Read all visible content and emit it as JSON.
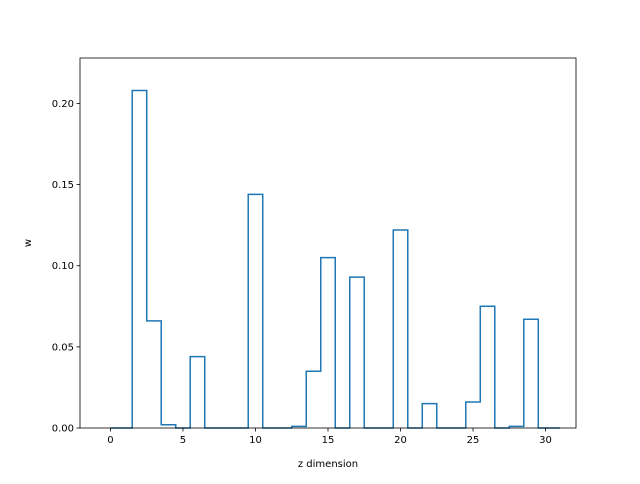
{
  "colors": {
    "series": "#1f77b4",
    "axes": "#000000",
    "background": "#ffffff"
  },
  "chart_data": {
    "type": "step",
    "title": "",
    "xlabel": "z dimension",
    "ylabel": "w",
    "xlim": [
      -2.1,
      32.1
    ],
    "ylim": [
      0,
      0.228
    ],
    "grid": false,
    "x_ticks": [
      0,
      5,
      10,
      15,
      20,
      25,
      30
    ],
    "x_tick_labels": [
      "0",
      "5",
      "10",
      "15",
      "20",
      "25",
      "30"
    ],
    "y_ticks": [
      0.0,
      0.05,
      0.1,
      0.15,
      0.2
    ],
    "y_tick_labels": [
      "0.00",
      "0.05",
      "0.10",
      "0.15",
      "0.20"
    ],
    "series": [
      {
        "x": [
          0,
          1,
          2,
          3,
          4,
          5,
          6,
          7,
          8,
          9,
          10,
          11,
          12,
          13,
          14,
          15,
          16,
          17,
          18,
          19,
          20,
          21,
          22,
          23,
          24,
          25,
          26,
          27,
          28,
          29,
          30,
          31
        ],
        "values": [
          0.0,
          0.0,
          0.208,
          0.066,
          0.002,
          0.0,
          0.044,
          0.0,
          0.0,
          0.0,
          0.144,
          0.0,
          0.0,
          0.001,
          0.035,
          0.105,
          0.0,
          0.093,
          0.0,
          0.0,
          0.122,
          0.0,
          0.015,
          0.0,
          0.0,
          0.016,
          0.075,
          0.0,
          0.001,
          0.067,
          0.0,
          0.0
        ]
      }
    ]
  }
}
